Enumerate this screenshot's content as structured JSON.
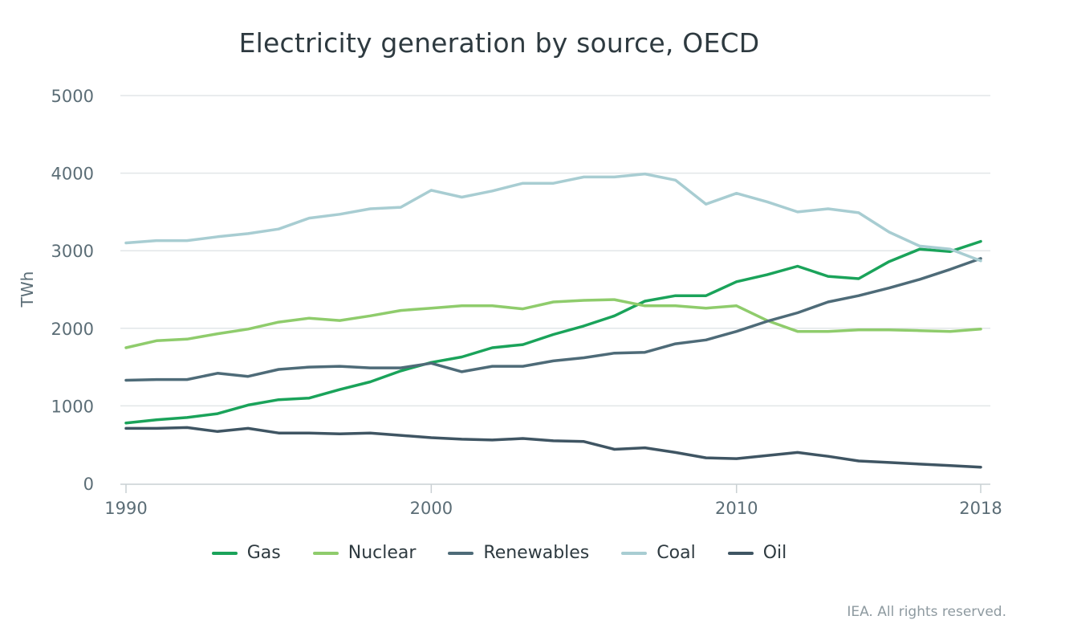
{
  "chart_data": {
    "type": "line",
    "title": "Electricity generation by source, OECD",
    "xlabel": "",
    "ylabel": "TWh",
    "xlim": [
      1990,
      2018
    ],
    "ylim": [
      0,
      5000
    ],
    "x_ticks": [
      "1990",
      "2000",
      "2010",
      "2018"
    ],
    "y_ticks": [
      "0",
      "1000",
      "2000",
      "3000",
      "4000",
      "5000"
    ],
    "grid": "horizontal",
    "legend_position": "bottom",
    "x": [
      1990,
      1991,
      1992,
      1993,
      1994,
      1995,
      1996,
      1997,
      1998,
      1999,
      2000,
      2001,
      2002,
      2003,
      2004,
      2005,
      2006,
      2007,
      2008,
      2009,
      2010,
      2011,
      2012,
      2013,
      2014,
      2015,
      2016,
      2017,
      2018
    ],
    "series": [
      {
        "name": "Gas",
        "color": "#1aa35a",
        "values": [
          780,
          820,
          850,
          900,
          1010,
          1080,
          1100,
          1210,
          1310,
          1450,
          1560,
          1630,
          1750,
          1790,
          1920,
          2030,
          2160,
          2350,
          2420,
          2420,
          2600,
          2690,
          2800,
          2670,
          2640,
          2860,
          3020,
          2990,
          3120
        ]
      },
      {
        "name": "Nuclear",
        "color": "#8fcc6c",
        "values": [
          1750,
          1840,
          1860,
          1930,
          1990,
          2080,
          2130,
          2100,
          2160,
          2230,
          2260,
          2290,
          2290,
          2250,
          2340,
          2360,
          2370,
          2290,
          2290,
          2260,
          2290,
          2100,
          1960,
          1960,
          1980,
          1980,
          1970,
          1960,
          1990
        ]
      },
      {
        "name": "Renewables",
        "color": "#4e6b78",
        "values": [
          1330,
          1340,
          1340,
          1420,
          1380,
          1470,
          1500,
          1510,
          1490,
          1490,
          1550,
          1440,
          1510,
          1510,
          1580,
          1620,
          1680,
          1690,
          1800,
          1850,
          1960,
          2090,
          2200,
          2340,
          2420,
          2520,
          2630,
          2760,
          2900
        ]
      },
      {
        "name": "Coal",
        "color": "#a8cdd2",
        "values": [
          3100,
          3130,
          3130,
          3180,
          3220,
          3280,
          3420,
          3470,
          3540,
          3560,
          3780,
          3690,
          3770,
          3870,
          3870,
          3950,
          3950,
          3990,
          3910,
          3600,
          3740,
          3630,
          3500,
          3540,
          3490,
          3240,
          3060,
          3020,
          2870
        ]
      },
      {
        "name": "Oil",
        "color": "#3f5563",
        "values": [
          710,
          710,
          720,
          670,
          710,
          650,
          650,
          640,
          650,
          620,
          590,
          570,
          560,
          580,
          550,
          540,
          440,
          460,
          400,
          330,
          320,
          360,
          400,
          350,
          290,
          270,
          250,
          230,
          210
        ]
      }
    ]
  },
  "credit": "IEA. All rights reserved."
}
